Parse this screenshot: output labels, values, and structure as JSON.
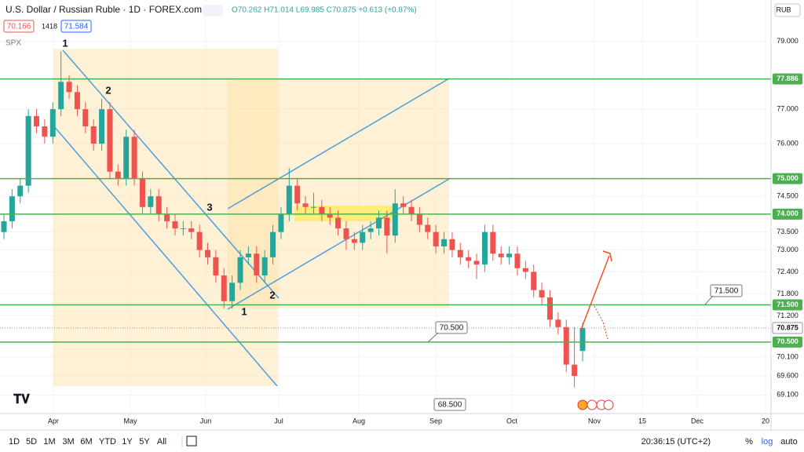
{
  "header": {
    "symbol": "U.S. Dollar / Russian Ruble · 1D · FOREX.com",
    "ohlc": "O70.262 H71.014 L69.985 C70.875 +0.613 (+0.87%)",
    "bid": "70.166",
    "spread": "1418",
    "ask": "71.584",
    "compare": "SPX",
    "currency": "RUB"
  },
  "chart_data": {
    "type": "candlestick",
    "log_scale": true,
    "grid": true,
    "up_color": "#26a69a",
    "down_color": "#ef5350",
    "level_color": "#4caf50",
    "ylim": [
      68.25,
      80.25
    ],
    "yticks": [
      {
        "value": 79,
        "label": "79.000"
      },
      {
        "value": 77,
        "label": "77.000"
      },
      {
        "value": 76,
        "label": "76.000"
      },
      {
        "value": 74.5,
        "label": "74.500"
      },
      {
        "value": 73.5,
        "label": "73.500"
      },
      {
        "value": 73,
        "label": "73.000"
      },
      {
        "value": 72.4,
        "label": "72.400"
      },
      {
        "value": 71.8,
        "label": "71.800"
      },
      {
        "value": 71.2,
        "label": "71.200"
      },
      {
        "value": 70.1,
        "label": "70.100"
      },
      {
        "value": 69.6,
        "label": "69.600"
      },
      {
        "value": 69.1,
        "label": "69.100"
      }
    ],
    "levels": [
      77.886,
      {
        "value": 75,
        "label": "75.000"
      },
      {
        "value": 74,
        "label": "74.000"
      },
      {
        "value": 71.5,
        "label": "71.500"
      },
      {
        "value": 70.5,
        "label": "70.500"
      }
    ],
    "last": 70.875,
    "x_labels": [
      "Apr",
      "May",
      "Jun",
      "Jul",
      "Aug",
      "Sep",
      "Oct",
      "Nov",
      "15",
      "Dec",
      "20"
    ],
    "candles": [
      [
        73.5,
        74.0,
        73.3,
        73.8
      ],
      [
        73.8,
        74.7,
        73.6,
        74.5
      ],
      [
        74.5,
        75.0,
        74.3,
        74.8
      ],
      [
        74.8,
        77.0,
        74.6,
        76.8
      ],
      [
        76.8,
        77.0,
        76.3,
        76.5
      ],
      [
        76.5,
        76.7,
        76.0,
        76.2
      ],
      [
        76.2,
        77.2,
        76.0,
        77.0
      ],
      [
        77.0,
        78.7,
        76.8,
        77.8
      ],
      [
        77.8,
        78.0,
        77.3,
        77.5
      ],
      [
        77.5,
        77.7,
        76.8,
        77.0
      ],
      [
        77.0,
        77.2,
        76.3,
        76.5
      ],
      [
        76.5,
        76.7,
        75.8,
        76.0
      ],
      [
        76.0,
        77.3,
        75.8,
        77.0
      ],
      [
        77.0,
        77.2,
        75.0,
        75.2
      ],
      [
        75.2,
        75.4,
        74.8,
        75.0
      ],
      [
        75.0,
        76.4,
        74.8,
        76.2
      ],
      [
        76.2,
        76.4,
        74.8,
        75.0
      ],
      [
        75.0,
        75.2,
        74.0,
        74.2
      ],
      [
        74.2,
        74.7,
        74.0,
        74.5
      ],
      [
        74.5,
        74.7,
        73.8,
        74.0
      ],
      [
        74.0,
        74.2,
        73.6,
        73.8
      ],
      [
        73.8,
        74.0,
        73.4,
        73.6
      ],
      [
        73.6,
        73.8,
        73.4,
        73.6
      ],
      [
        73.6,
        73.8,
        73.3,
        73.5
      ],
      [
        73.5,
        73.7,
        72.8,
        73.0
      ],
      [
        73.0,
        73.2,
        72.6,
        72.8
      ],
      [
        72.8,
        73.0,
        72.1,
        72.3
      ],
      [
        72.3,
        72.5,
        71.4,
        71.6
      ],
      [
        71.6,
        72.3,
        71.4,
        72.1
      ],
      [
        72.1,
        73.0,
        71.9,
        72.8
      ],
      [
        72.8,
        73.1,
        72.6,
        72.9
      ],
      [
        72.9,
        73.1,
        72.1,
        72.3
      ],
      [
        72.3,
        73.0,
        72.1,
        72.8
      ],
      [
        72.8,
        73.7,
        72.6,
        73.5
      ],
      [
        73.5,
        74.2,
        73.3,
        74.0
      ],
      [
        74.0,
        75.3,
        73.8,
        74.8
      ],
      [
        74.8,
        75.0,
        74.1,
        74.3
      ],
      [
        74.3,
        74.5,
        74.0,
        74.2
      ],
      [
        74.2,
        74.6,
        74.0,
        74.2
      ],
      [
        74.2,
        74.4,
        73.8,
        74.0
      ],
      [
        74.0,
        74.2,
        73.7,
        73.9
      ],
      [
        73.9,
        74.1,
        73.4,
        73.6
      ],
      [
        73.6,
        73.8,
        73.0,
        73.3
      ],
      [
        73.3,
        73.5,
        73.0,
        73.2
      ],
      [
        73.2,
        73.7,
        73.0,
        73.5
      ],
      [
        73.5,
        73.8,
        73.3,
        73.6
      ],
      [
        73.6,
        74.1,
        73.4,
        73.9
      ],
      [
        73.9,
        74.1,
        72.9,
        73.4
      ],
      [
        73.4,
        74.7,
        73.2,
        74.3
      ],
      [
        74.3,
        74.5,
        74.0,
        74.2
      ],
      [
        74.2,
        74.4,
        73.8,
        74.0
      ],
      [
        74.0,
        74.2,
        73.5,
        73.7
      ],
      [
        73.7,
        73.9,
        73.3,
        73.5
      ],
      [
        73.5,
        73.7,
        72.9,
        73.1
      ],
      [
        73.1,
        73.5,
        72.9,
        73.3
      ],
      [
        73.3,
        73.5,
        72.8,
        73.0
      ],
      [
        73.0,
        73.2,
        72.6,
        72.8
      ],
      [
        72.8,
        73.0,
        72.5,
        72.7
      ],
      [
        72.7,
        72.9,
        72.2,
        72.6
      ],
      [
        72.6,
        73.7,
        72.4,
        73.5
      ],
      [
        73.5,
        73.7,
        72.7,
        72.9
      ],
      [
        72.9,
        73.1,
        72.6,
        72.8
      ],
      [
        72.8,
        73.1,
        72.6,
        72.9
      ],
      [
        72.9,
        73.1,
        72.3,
        72.5
      ],
      [
        72.5,
        72.7,
        72.2,
        72.4
      ],
      [
        72.4,
        72.6,
        71.7,
        71.9
      ],
      [
        71.9,
        72.1,
        71.5,
        71.7
      ],
      [
        71.7,
        71.9,
        70.9,
        71.1
      ],
      [
        71.1,
        71.3,
        70.7,
        70.9
      ],
      [
        70.9,
        71.1,
        69.7,
        69.9
      ],
      [
        69.9,
        70.9,
        69.3,
        69.6
      ],
      [
        70.262,
        71.014,
        69.985,
        70.875
      ]
    ]
  },
  "annotations": {
    "callouts": [
      "71.500",
      "70.500",
      "68.500"
    ],
    "waves": [
      "1",
      "2",
      "3",
      "2",
      "1"
    ]
  },
  "toolbar": {
    "ranges": [
      "1D",
      "5D",
      "1M",
      "3M",
      "6M",
      "YTD",
      "1Y",
      "5Y",
      "All"
    ],
    "clock": "20:36:15 (UTC+2)",
    "percent": "%",
    "log": "log",
    "auto": "auto"
  }
}
